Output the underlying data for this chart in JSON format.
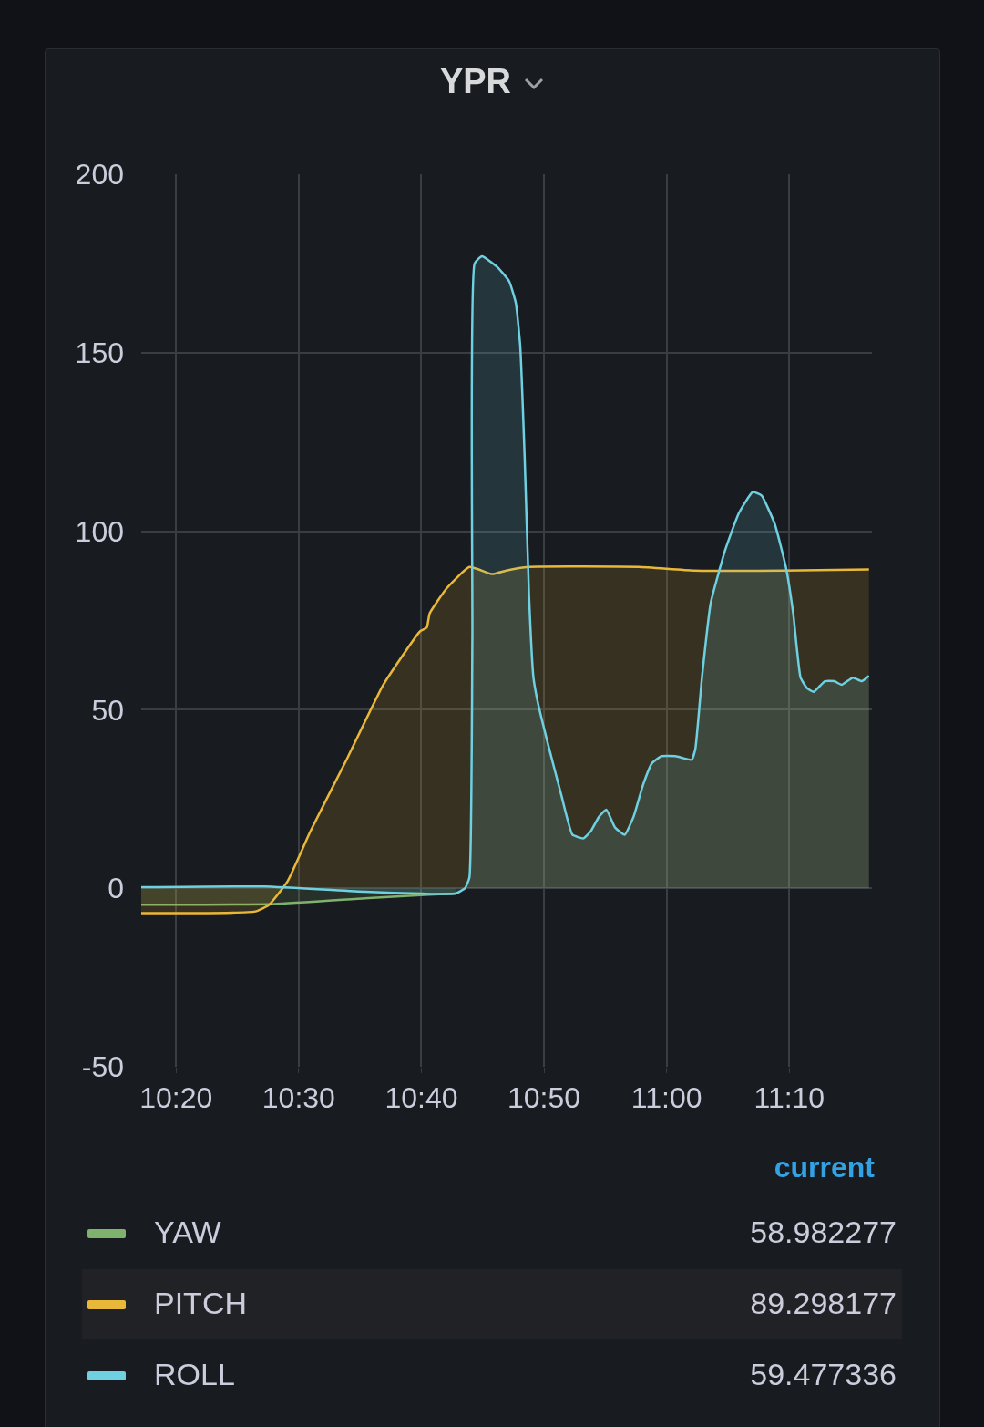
{
  "chart_data": {
    "type": "area",
    "title": "YPR",
    "legend": "bottom",
    "legend_title": "current",
    "grid": true,
    "xlim": [
      10.286,
      11.279
    ],
    "xticks": [
      {
        "value": 10.3333,
        "label": "10:20"
      },
      {
        "value": 10.5,
        "label": "10:30"
      },
      {
        "value": 10.6667,
        "label": "10:40"
      },
      {
        "value": 10.8333,
        "label": "10:50"
      },
      {
        "value": 11.0,
        "label": "11:00"
      },
      {
        "value": 11.1667,
        "label": "11:10"
      }
    ],
    "ylim": [
      -50,
      200
    ],
    "yticks": [
      -50,
      0,
      50,
      100,
      150,
      200
    ],
    "annotations": [
      "58.982277",
      "89.298177",
      "59.477336"
    ],
    "series": [
      {
        "name": "YAW",
        "color": "#7eb26d",
        "x": [
          10.286,
          10.467,
          10.59,
          10.677,
          10.713
        ],
        "values": [
          -4.6,
          -4.4,
          -2.8,
          -1.8,
          -1.5
        ]
      },
      {
        "name": "PITCH",
        "color": "#eab839",
        "x": [
          10.286,
          10.441,
          10.46,
          10.485,
          10.516,
          10.565,
          10.615,
          10.665,
          10.674,
          10.678,
          10.701,
          10.732,
          10.763,
          10.782,
          10.813,
          10.962,
          11.037,
          11.16,
          11.275
        ],
        "values": [
          -7,
          -6.5,
          -4.6,
          2,
          16,
          36,
          57,
          72,
          73,
          77,
          84,
          90,
          88,
          89,
          90,
          90,
          89,
          89,
          89.3
        ]
      },
      {
        "name": "ROLL",
        "color": "#6ed0e0",
        "x": [
          10.286,
          10.453,
          10.59,
          10.667,
          10.713,
          10.726,
          10.732,
          10.736,
          10.739,
          10.749,
          10.77,
          10.786,
          10.795,
          10.801,
          10.807,
          10.813,
          10.819,
          10.825,
          10.838,
          10.857,
          10.872,
          10.887,
          10.897,
          10.908,
          10.918,
          10.93,
          10.943,
          10.955,
          10.968,
          10.98,
          10.993,
          11.012,
          11.034,
          11.039,
          11.048,
          11.06,
          11.08,
          11.098,
          11.117,
          11.129,
          11.147,
          11.162,
          11.172,
          11.182,
          11.191,
          11.2,
          11.215,
          11.228,
          11.238,
          11.253,
          11.265,
          11.275
        ],
        "values": [
          0.3,
          0.5,
          -1,
          -1.5,
          -1.5,
          0,
          3,
          70,
          175,
          177,
          174,
          170,
          164,
          152,
          121,
          82,
          59,
          52,
          41,
          26,
          15,
          14,
          16,
          20,
          22,
          17,
          15,
          20,
          29,
          35,
          37,
          37,
          36,
          39,
          59,
          80,
          95,
          105,
          111,
          110,
          102,
          90,
          77,
          59,
          56,
          55,
          58,
          58,
          57,
          59,
          58,
          59.5
        ]
      }
    ]
  }
}
